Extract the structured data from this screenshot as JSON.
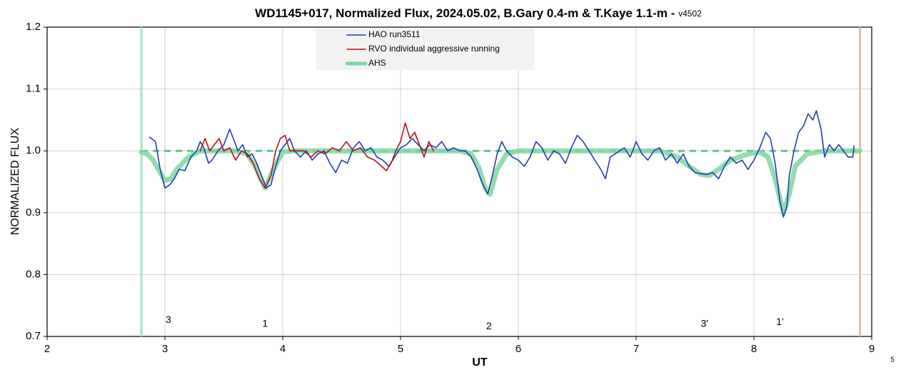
{
  "chart_data": {
    "type": "line",
    "title": "WD1145+017, Normalized Flux, 2024.05.02, B.Gary 0.4-m & T.Kaye 1.1-m - ",
    "version": "v4502",
    "x_label": "UT",
    "y_label": "NORMALIZED FLUX",
    "xlim": [
      2,
      9
    ],
    "ylim": [
      0.7,
      1.2
    ],
    "xticks": [
      2,
      3,
      4,
      5,
      6,
      7,
      8,
      9
    ],
    "yticks": [
      0.7,
      0.8,
      0.9,
      {
        "value": 1,
        "label": "1.0"
      },
      1.1,
      1.2
    ],
    "grid": true,
    "legend": "top-center",
    "series": [
      {
        "name": "HAO run3511",
        "color": "#1f3fb0",
        "width": 1.6,
        "x": [
          2.87,
          2.92,
          2.96,
          3.0,
          3.04,
          3.08,
          3.12,
          3.17,
          3.22,
          3.27,
          3.3,
          3.33,
          3.37,
          3.4,
          3.45,
          3.5,
          3.55,
          3.58,
          3.62,
          3.66,
          3.7,
          3.74,
          3.78,
          3.82,
          3.86,
          3.9,
          3.94,
          3.98,
          4.02,
          4.06,
          4.1,
          4.15,
          4.2,
          4.25,
          4.3,
          4.35,
          4.4,
          4.45,
          4.5,
          4.55,
          4.6,
          4.65,
          4.7,
          4.75,
          4.8,
          4.85,
          4.9,
          4.95,
          5.0,
          5.05,
          5.1,
          5.15,
          5.2,
          5.25,
          5.3,
          5.35,
          5.4,
          5.45,
          5.5,
          5.55,
          5.6,
          5.65,
          5.7,
          5.74,
          5.78,
          5.82,
          5.86,
          5.9,
          5.95,
          6.0,
          6.05,
          6.1,
          6.15,
          6.2,
          6.25,
          6.3,
          6.35,
          6.4,
          6.45,
          6.5,
          6.55,
          6.6,
          6.65,
          6.7,
          6.74,
          6.78,
          6.82,
          6.86,
          6.9,
          6.95,
          7.0,
          7.05,
          7.1,
          7.15,
          7.2,
          7.25,
          7.3,
          7.35,
          7.4,
          7.45,
          7.5,
          7.55,
          7.6,
          7.65,
          7.7,
          7.75,
          7.8,
          7.85,
          7.9,
          7.95,
          8.0,
          8.05,
          8.1,
          8.14,
          8.18,
          8.22,
          8.25,
          8.28,
          8.3,
          8.34,
          8.38,
          8.42,
          8.46,
          8.5,
          8.53,
          8.57,
          8.6,
          8.64,
          8.68,
          8.72,
          8.76,
          8.8,
          8.84,
          8.85
        ],
        "values": [
          1.022,
          1.015,
          0.97,
          0.94,
          0.945,
          0.955,
          0.97,
          0.968,
          0.99,
          1.0,
          1.015,
          1.005,
          0.98,
          0.985,
          1.0,
          1.01,
          1.035,
          1.02,
          1.0,
          1.01,
          0.99,
          0.995,
          0.98,
          0.96,
          0.94,
          0.945,
          0.975,
          1.0,
          1.01,
          1.02,
          1.0,
          0.99,
          1.0,
          0.985,
          0.995,
          1.0,
          0.98,
          0.965,
          0.985,
          0.98,
          1.005,
          1.015,
          1.0,
          1.005,
          0.99,
          0.985,
          0.975,
          0.99,
          1.005,
          1.01,
          1.02,
          1.01,
          1.0,
          1.01,
          1.005,
          1.015,
          1.0,
          1.005,
          1.0,
          1.0,
          0.99,
          0.97,
          0.945,
          0.93,
          0.96,
          0.995,
          1.015,
          1.0,
          0.99,
          0.985,
          0.975,
          0.99,
          1.015,
          1.005,
          0.985,
          1.0,
          0.995,
          0.98,
          1.005,
          1.025,
          1.015,
          1.0,
          0.985,
          0.97,
          0.955,
          0.99,
          0.995,
          1.0,
          1.005,
          0.99,
          1.015,
          0.995,
          0.985,
          1.0,
          1.005,
          0.985,
          0.995,
          0.98,
          0.995,
          0.975,
          0.965,
          0.963,
          0.962,
          0.965,
          0.955,
          0.975,
          0.99,
          0.98,
          0.985,
          0.97,
          0.985,
          1.005,
          1.03,
          1.02,
          0.98,
          0.92,
          0.893,
          0.91,
          0.96,
          1.0,
          1.03,
          1.04,
          1.06,
          1.05,
          1.065,
          1.035,
          0.99,
          1.01,
          1.0,
          1.01,
          1.0,
          0.99,
          0.99,
          1.008
        ]
      },
      {
        "name": "RVO individual aggressive running",
        "color": "#b01414",
        "width": 1.6,
        "x": [
          3.3,
          3.34,
          3.38,
          3.42,
          3.46,
          3.5,
          3.55,
          3.6,
          3.65,
          3.7,
          3.75,
          3.8,
          3.85,
          3.9,
          3.94,
          3.98,
          4.02,
          4.06,
          4.12,
          4.18,
          4.24,
          4.3,
          4.36,
          4.42,
          4.48,
          4.54,
          4.6,
          4.66,
          4.72,
          4.78,
          4.84,
          4.88,
          4.92,
          4.96,
          5.0,
          5.04,
          5.08,
          5.12,
          5.16,
          5.2,
          5.24,
          5.28
        ],
        "values": [
          1.0,
          1.02,
          1.0,
          1.01,
          1.02,
          1.0,
          1.005,
          0.985,
          1.0,
          0.995,
          0.98,
          0.955,
          0.94,
          0.96,
          1.0,
          1.02,
          1.025,
          1.0,
          1.0,
          1.0,
          0.99,
          1.0,
          0.995,
          1.005,
          1.0,
          1.015,
          1.0,
          1.005,
          0.99,
          0.985,
          0.975,
          0.968,
          0.98,
          1.0,
          1.015,
          1.045,
          1.02,
          1.03,
          1.01,
          0.99,
          1.015,
          1.0
        ]
      },
      {
        "name": "AHS",
        "color": "#7fd6a0",
        "width": 7,
        "x": [
          2.8,
          2.85,
          2.9,
          2.95,
          3.0,
          3.05,
          3.1,
          3.2,
          3.3,
          3.6,
          3.7,
          3.78,
          3.85,
          3.92,
          4.0,
          4.1,
          5.5,
          5.6,
          5.66,
          5.72,
          5.76,
          5.82,
          5.9,
          6.0,
          7.2,
          7.35,
          7.45,
          7.55,
          7.62,
          7.7,
          7.8,
          7.95,
          8.05,
          8.12,
          8.18,
          8.25,
          8.3,
          8.35,
          8.45,
          8.6,
          8.9
        ],
        "values": [
          0.998,
          0.995,
          0.985,
          0.968,
          0.952,
          0.955,
          0.97,
          0.99,
          1.0,
          1.0,
          0.995,
          0.97,
          0.94,
          0.97,
          0.998,
          1.0,
          1.0,
          0.995,
          0.975,
          0.94,
          0.93,
          0.97,
          0.995,
          1.0,
          1.0,
          0.99,
          0.975,
          0.962,
          0.96,
          0.97,
          0.985,
          0.995,
          0.998,
          0.99,
          0.955,
          0.9,
          0.93,
          0.975,
          0.995,
          1.0,
          1.0
        ]
      }
    ],
    "baseline": {
      "y": 1,
      "x": [
        2.8,
        8.9
      ],
      "color": "#5cc98a"
    },
    "vlines": [
      {
        "x": 2.8,
        "color": "#a6e3bf"
      },
      {
        "x": 8.9,
        "color": "#e6b8b0"
      }
    ],
    "annotations": [
      {
        "text": "3",
        "x": 3.03,
        "y": 0.726
      },
      {
        "text": "1",
        "x": 3.85,
        "y": 0.72
      },
      {
        "text": "2",
        "x": 5.75,
        "y": 0.716
      },
      {
        "text": "3'",
        "x": 7.58,
        "y": 0.72
      },
      {
        "text": "1'",
        "x": 8.22,
        "y": 0.723
      }
    ],
    "corner_note": "5"
  }
}
